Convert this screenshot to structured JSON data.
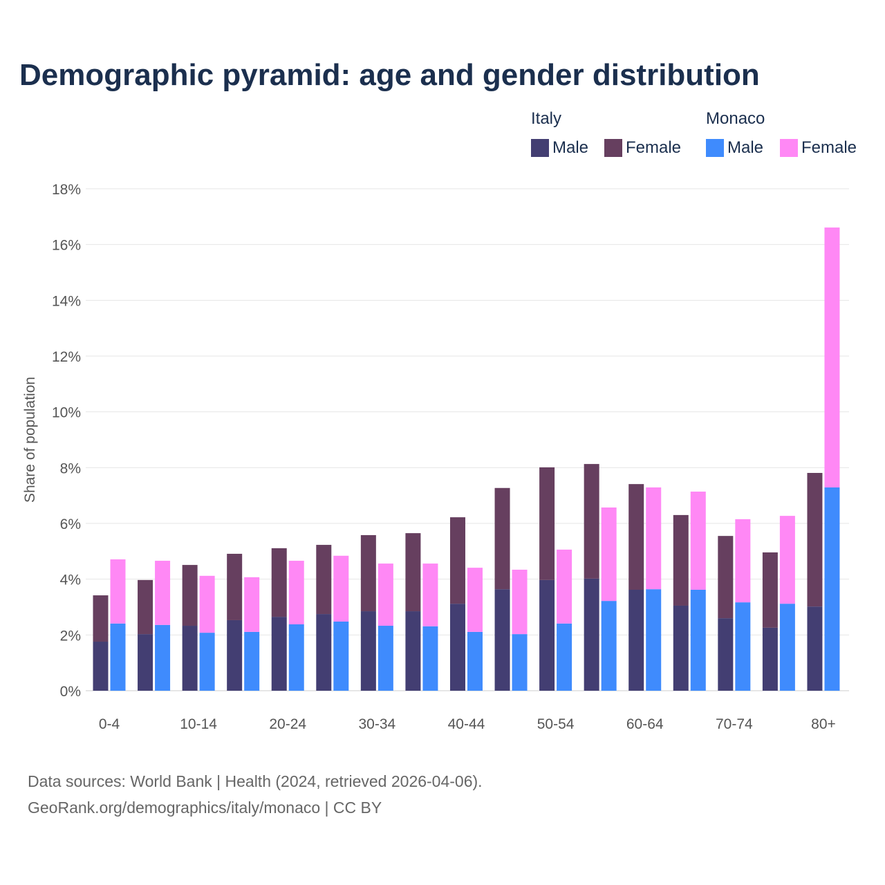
{
  "chart_data": {
    "type": "bar",
    "title": "Demographic pyramid: age and gender distribution",
    "ylabel": "Share of population",
    "xlabel": "",
    "ylim": [
      0,
      18
    ],
    "yticks": [
      "0%",
      "2%",
      "4%",
      "6%",
      "8%",
      "10%",
      "12%",
      "14%",
      "16%",
      "18%"
    ],
    "grid": true,
    "legend_position": "top-right",
    "legend_groups": [
      {
        "name": "Italy",
        "items": [
          {
            "label": "Male",
            "color": "#433e72"
          },
          {
            "label": "Female",
            "color": "#663f5f"
          }
        ]
      },
      {
        "name": "Monaco",
        "items": [
          {
            "label": "Male",
            "color": "#3f8bfd"
          },
          {
            "label": "Female",
            "color": "#ff88f5"
          }
        ]
      }
    ],
    "categories": [
      "0-4",
      "5-9",
      "10-14",
      "15-19",
      "20-24",
      "25-29",
      "30-34",
      "35-39",
      "40-44",
      "45-49",
      "50-54",
      "55-59",
      "60-64",
      "65-69",
      "70-74",
      "75-79",
      "80+"
    ],
    "visible_tick_labels": [
      "0-4",
      "10-14",
      "20-24",
      "30-34",
      "40-44",
      "50-54",
      "60-64",
      "70-74",
      "80+"
    ],
    "series": [
      {
        "name": "Italy Male",
        "stack": "Italy",
        "color": "#433e72",
        "values": [
          1.76,
          2.03,
          2.33,
          2.53,
          2.65,
          2.75,
          2.85,
          2.85,
          3.12,
          3.64,
          3.97,
          4.02,
          3.62,
          3.05,
          2.6,
          2.26,
          3.02
        ]
      },
      {
        "name": "Italy Female",
        "stack": "Italy",
        "color": "#663f5f",
        "values": [
          1.66,
          1.94,
          2.18,
          2.38,
          2.46,
          2.48,
          2.73,
          2.8,
          3.1,
          3.63,
          4.04,
          4.11,
          3.79,
          3.25,
          2.95,
          2.7,
          4.79
        ]
      },
      {
        "name": "Monaco Male",
        "stack": "Monaco",
        "color": "#3f8bfd",
        "values": [
          2.41,
          2.36,
          2.08,
          2.11,
          2.38,
          2.48,
          2.33,
          2.31,
          2.11,
          2.03,
          2.41,
          3.22,
          3.64,
          3.62,
          3.17,
          3.12,
          7.29
        ]
      },
      {
        "name": "Monaco Female",
        "stack": "Monaco",
        "color": "#ff88f5",
        "values": [
          2.3,
          2.3,
          2.04,
          1.96,
          2.28,
          2.36,
          2.23,
          2.25,
          2.3,
          2.31,
          2.65,
          3.35,
          3.65,
          3.52,
          2.98,
          3.15,
          9.32
        ]
      }
    ]
  },
  "footer": {
    "source": "Data sources: World Bank | Health (2024, retrieved 2026-04-06).",
    "url": "GeoRank.org/demographics/italy/monaco | CC BY"
  }
}
